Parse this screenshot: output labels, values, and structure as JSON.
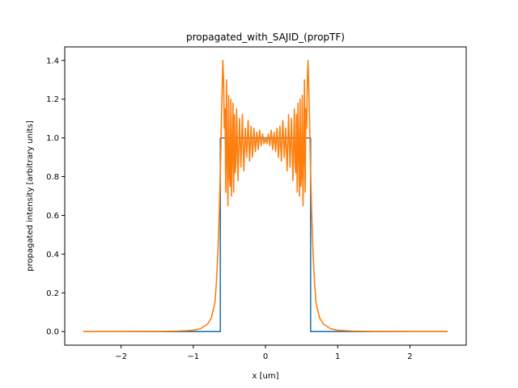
{
  "chart_data": {
    "type": "line",
    "title": "propagated_with_SAJID_(propTF)",
    "xlabel": "x [um]",
    "ylabel": "propagated intensity [arbitrary units]",
    "xlim": [
      -2.78,
      2.78
    ],
    "ylim": [
      -0.07,
      1.47
    ],
    "xticks": [
      -2,
      -1,
      0,
      1,
      2
    ],
    "xtick_labels": [
      "−2",
      "−1",
      "0",
      "1",
      "2"
    ],
    "yticks": [
      0.0,
      0.2,
      0.4,
      0.6,
      0.8,
      1.0,
      1.2,
      1.4
    ],
    "ytick_labels": [
      "0.0",
      "0.2",
      "0.4",
      "0.6",
      "0.8",
      "1.0",
      "1.2",
      "1.4"
    ],
    "grid": false,
    "series": [
      {
        "color": "#1f77b4",
        "x": [
          -2.52,
          -0.625,
          -0.625,
          0.625,
          0.625,
          2.52
        ],
        "y": [
          0.0,
          0.0,
          1.0,
          1.0,
          0.0,
          0.0
        ]
      },
      {
        "color": "#ff7f0e",
        "x": [
          -2.52,
          -2.0,
          -1.5,
          -1.2,
          -1.0,
          -0.9,
          -0.8,
          -0.75,
          -0.7,
          -0.68,
          -0.66,
          -0.65,
          -0.64,
          -0.63,
          -0.62,
          -0.61,
          -0.6,
          -0.59,
          -0.58,
          -0.57,
          -0.56,
          -0.55,
          -0.54,
          -0.53,
          -0.52,
          -0.51,
          -0.5,
          -0.49,
          -0.48,
          -0.47,
          -0.46,
          -0.45,
          -0.44,
          -0.43,
          -0.42,
          -0.41,
          -0.4,
          -0.38,
          -0.36,
          -0.34,
          -0.32,
          -0.3,
          -0.28,
          -0.26,
          -0.24,
          -0.22,
          -0.2,
          -0.18,
          -0.16,
          -0.14,
          -0.12,
          -0.1,
          -0.08,
          -0.06,
          -0.04,
          -0.02,
          0.0,
          0.02,
          0.04,
          0.06,
          0.08,
          0.1,
          0.12,
          0.14,
          0.16,
          0.18,
          0.2,
          0.22,
          0.24,
          0.26,
          0.28,
          0.3,
          0.32,
          0.34,
          0.36,
          0.38,
          0.4,
          0.41,
          0.42,
          0.43,
          0.44,
          0.45,
          0.46,
          0.47,
          0.48,
          0.49,
          0.5,
          0.51,
          0.52,
          0.53,
          0.54,
          0.55,
          0.56,
          0.57,
          0.58,
          0.59,
          0.6,
          0.61,
          0.62,
          0.63,
          0.64,
          0.65,
          0.66,
          0.68,
          0.7,
          0.75,
          0.8,
          0.9,
          1.0,
          1.2,
          1.5,
          2.0,
          2.52
        ],
        "y": [
          0.0,
          0.0,
          0.001,
          0.003,
          0.007,
          0.015,
          0.04,
          0.07,
          0.15,
          0.25,
          0.4,
          0.5,
          0.62,
          0.76,
          0.9,
          1.1,
          1.25,
          1.4,
          1.3,
          1.05,
          1.15,
          0.72,
          1.3,
          0.9,
          0.65,
          1.22,
          0.8,
          0.75,
          1.2,
          0.7,
          0.92,
          1.18,
          0.72,
          1.12,
          0.82,
          0.86,
          1.15,
          0.78,
          1.1,
          0.85,
          1.12,
          0.83,
          1.05,
          0.9,
          1.09,
          0.88,
          1.06,
          0.9,
          1.05,
          0.93,
          1.03,
          0.94,
          1.04,
          0.96,
          1.02,
          0.97,
          1.0,
          0.97,
          1.02,
          0.96,
          1.04,
          0.94,
          1.03,
          0.93,
          1.05,
          0.9,
          1.06,
          0.88,
          1.09,
          0.9,
          1.05,
          0.83,
          1.12,
          0.85,
          1.1,
          0.78,
          1.15,
          0.86,
          0.82,
          1.12,
          0.72,
          1.18,
          0.92,
          0.7,
          1.2,
          0.75,
          0.8,
          1.22,
          0.65,
          0.9,
          1.3,
          0.72,
          1.15,
          1.05,
          1.3,
          1.4,
          1.25,
          1.1,
          0.9,
          0.76,
          0.62,
          0.5,
          0.4,
          0.25,
          0.15,
          0.07,
          0.04,
          0.015,
          0.007,
          0.003,
          0.001,
          0.0,
          0.0
        ]
      }
    ]
  }
}
